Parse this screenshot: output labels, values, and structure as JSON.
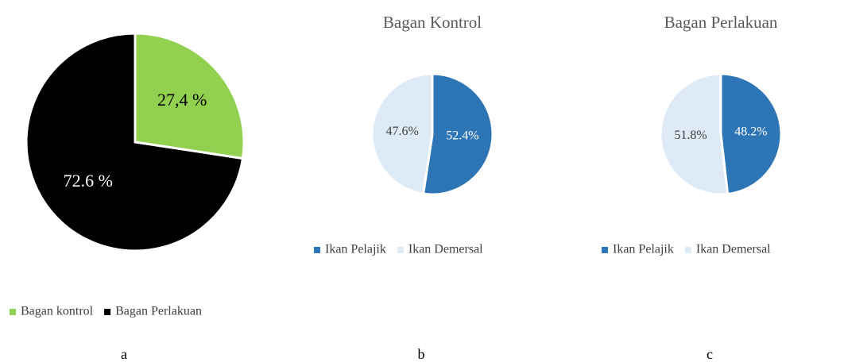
{
  "chart_data": [
    {
      "type": "pie",
      "caption": "a",
      "categories": [
        "Bagan kontrol",
        "Bagan Perlakuan"
      ],
      "values": [
        27.4,
        72.6
      ],
      "value_labels": [
        "27,4 %",
        "72.6 %"
      ],
      "colors": [
        "#92d050",
        "#000000"
      ],
      "label_colors": [
        "#000000",
        "#ffffff"
      ],
      "legend": "bottom"
    },
    {
      "type": "pie",
      "title": "Bagan Kontrol",
      "caption": "b",
      "categories": [
        "Ikan Pelajik",
        "Ikan Demersal"
      ],
      "values": [
        52.4,
        47.6
      ],
      "value_labels": [
        "52.4%",
        "47.6%"
      ],
      "colors": [
        "#2e75b6",
        "#deebf7"
      ],
      "label_colors": [
        "#ffffff",
        "#404040"
      ],
      "legend": "bottom"
    },
    {
      "type": "pie",
      "title": "Bagan Perlakuan",
      "caption": "c",
      "categories": [
        "Ikan Pelajik",
        "Ikan Demersal"
      ],
      "values": [
        48.2,
        51.8
      ],
      "value_labels": [
        "48.2%",
        "51.8%"
      ],
      "colors": [
        "#2e75b6",
        "#deebf7"
      ],
      "label_colors": [
        "#ffffff",
        "#404040"
      ],
      "legend": "bottom"
    }
  ]
}
